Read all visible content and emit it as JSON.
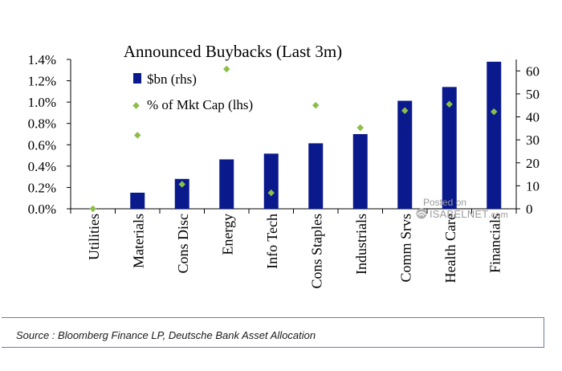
{
  "chart_data": {
    "type": "bar",
    "title": "Announced Buybacks (Last 3m)",
    "categories": [
      "Utilities",
      "Materials",
      "Cons Disc",
      "Energy",
      "Info Tech",
      "Cons Staples",
      "Industrials",
      "Comm Srvs",
      "Health Care",
      "Financials"
    ],
    "series": [
      {
        "name": "$bn (rhs)",
        "kind": "bar",
        "axis": "right",
        "color": "#0a1a8c",
        "values": [
          0,
          7,
          13,
          21.5,
          24,
          28.5,
          32.5,
          47,
          53,
          64
        ]
      },
      {
        "name": "% of Mkt Cap (lhs)",
        "kind": "marker",
        "axis": "left",
        "color": "#8cbe4a",
        "values": [
          0.0,
          0.69,
          0.23,
          1.31,
          0.15,
          0.97,
          0.76,
          0.92,
          0.98,
          0.91
        ]
      }
    ],
    "y_left": {
      "ylim": [
        0,
        1.4
      ],
      "ticks": [
        "0.0%",
        "0.2%",
        "0.4%",
        "0.6%",
        "0.8%",
        "1.0%",
        "1.2%",
        "1.4%"
      ]
    },
    "y_right": {
      "ylim": [
        0,
        65
      ],
      "ticks": [
        "0",
        "10",
        "20",
        "30",
        "40",
        "50",
        "60"
      ]
    },
    "legend_position": "top-left",
    "grid": false
  },
  "source": "Source : Bloomberg Finance LP, Deutsche Bank Asset Allocation",
  "watermark": {
    "posted": "Posted on",
    "brand": "ISABELNET",
    "suffix": ".com"
  }
}
